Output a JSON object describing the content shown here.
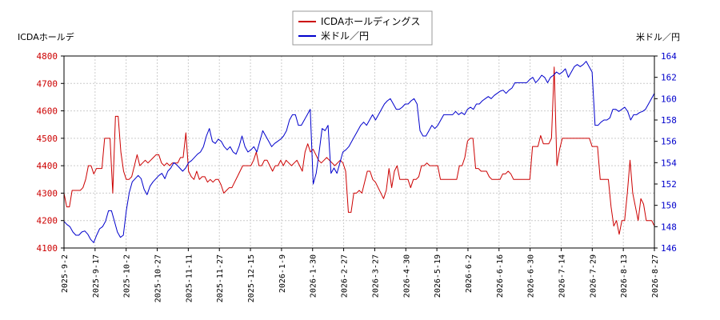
{
  "chart_data": {
    "type": "line",
    "left_axis_label": "ICDAホールデ",
    "right_axis_label": "米ドル／円",
    "legend_position": "top-center",
    "grid": true,
    "colors": {
      "left_series": "#cc0000",
      "right_series": "#0000cc",
      "grid": "#cccccc",
      "frame": "#000000"
    },
    "left_axis": {
      "min": 4100,
      "max": 4800,
      "ticks": [
        "4100",
        "4200",
        "4300",
        "4400",
        "4500",
        "4600",
        "4700",
        "4800"
      ]
    },
    "right_axis": {
      "min": 146,
      "max": 164,
      "ticks": [
        "146",
        "148",
        "150",
        "152",
        "154",
        "156",
        "158",
        "160",
        "162",
        "164"
      ]
    },
    "x_ticks": [
      "2025-9-2",
      "2025-9-17",
      "2025-10-2",
      "2025-10-27",
      "2025-11-11",
      "2025-11-27",
      "2025-12-15",
      "2026-1-9",
      "2026-1-30",
      "2026-2-27",
      "2026-3-27",
      "2026-4-30",
      "2026-5-19",
      "2026-6-2",
      "2026-6-16",
      "2026-6-30",
      "2026-7-14",
      "2026-7-29",
      "2026-8-13",
      "2026-8-27"
    ],
    "series": [
      {
        "name": "ICDAホールディングス",
        "axis": "left",
        "values": [
          4300,
          4250,
          4250,
          4310,
          4310,
          4310,
          4310,
          4320,
          4350,
          4400,
          4400,
          4370,
          4390,
          4390,
          4390,
          4500,
          4500,
          4500,
          4300,
          4580,
          4580,
          4450,
          4380,
          4350,
          4350,
          4360,
          4400,
          4440,
          4400,
          4410,
          4420,
          4410,
          4420,
          4430,
          4440,
          4440,
          4410,
          4400,
          4410,
          4400,
          4410,
          4410,
          4410,
          4430,
          4430,
          4520,
          4380,
          4360,
          4350,
          4380,
          4350,
          4360,
          4360,
          4340,
          4350,
          4340,
          4350,
          4350,
          4330,
          4300,
          4310,
          4320,
          4320,
          4340,
          4360,
          4380,
          4400,
          4400,
          4400,
          4400,
          4420,
          4450,
          4400,
          4400,
          4420,
          4420,
          4400,
          4380,
          4400,
          4400,
          4420,
          4400,
          4420,
          4410,
          4400,
          4410,
          4420,
          4400,
          4380,
          4450,
          4480,
          4450,
          4460,
          4440,
          4420,
          4410,
          4420,
          4430,
          4420,
          4410,
          4400,
          4410,
          4420,
          4410,
          4380,
          4230,
          4230,
          4300,
          4300,
          4310,
          4300,
          4340,
          4380,
          4380,
          4350,
          4340,
          4320,
          4300,
          4280,
          4310,
          4390,
          4320,
          4380,
          4400,
          4350,
          4350,
          4350,
          4350,
          4320,
          4350,
          4350,
          4360,
          4400,
          4400,
          4410,
          4400,
          4400,
          4400,
          4400,
          4350,
          4350,
          4350,
          4350,
          4350,
          4350,
          4350,
          4400,
          4400,
          4430,
          4490,
          4500,
          4500,
          4390,
          4390,
          4380,
          4380,
          4380,
          4360,
          4350,
          4350,
          4350,
          4350,
          4370,
          4370,
          4380,
          4370,
          4350,
          4350,
          4350,
          4350,
          4350,
          4350,
          4350,
          4470,
          4470,
          4470,
          4510,
          4480,
          4480,
          4480,
          4500,
          4760,
          4400,
          4460,
          4500,
          4500,
          4500,
          4500,
          4500,
          4500,
          4500,
          4500,
          4500,
          4500,
          4500,
          4470,
          4470,
          4470,
          4350,
          4350,
          4350,
          4350,
          4250,
          4180,
          4200,
          4150,
          4200,
          4200,
          4300,
          4420,
          4300,
          4250,
          4200,
          4280,
          4260,
          4200,
          4200,
          4200,
          4180
        ]
      },
      {
        "name": "米ドル／円",
        "axis": "right",
        "values": [
          148.5,
          148.2,
          148.0,
          147.5,
          147.2,
          147.2,
          147.5,
          147.6,
          147.3,
          146.8,
          146.5,
          147.2,
          147.8,
          148.0,
          148.5,
          149.5,
          149.5,
          148.5,
          147.5,
          147.0,
          147.2,
          149.5,
          151.2,
          152.2,
          152.5,
          152.8,
          152.5,
          151.5,
          151.0,
          151.8,
          152.2,
          152.5,
          152.8,
          153.0,
          152.5,
          153.2,
          153.5,
          154.0,
          153.8,
          153.5,
          153.2,
          153.5,
          154.0,
          154.2,
          154.5,
          154.8,
          155.0,
          155.5,
          156.5,
          157.2,
          156.0,
          155.8,
          156.2,
          156.0,
          155.5,
          155.2,
          155.5,
          155.0,
          154.8,
          155.5,
          156.5,
          155.5,
          155.0,
          155.2,
          155.5,
          155.0,
          156.0,
          157.0,
          156.5,
          156.0,
          155.5,
          155.8,
          156.0,
          156.2,
          156.5,
          157.0,
          158.0,
          158.5,
          158.5,
          157.5,
          157.5,
          158.0,
          158.5,
          159.0,
          152.0,
          153.0,
          155.0,
          157.2,
          157.0,
          157.5,
          153.0,
          153.5,
          153.0,
          154.0,
          155.0,
          155.2,
          155.5,
          156.0,
          156.5,
          157.0,
          157.5,
          157.8,
          157.5,
          158.0,
          158.5,
          158.0,
          158.5,
          159.0,
          159.5,
          159.8,
          160.0,
          159.5,
          159.0,
          159.0,
          159.2,
          159.5,
          159.5,
          159.8,
          160.0,
          159.5,
          157.0,
          156.5,
          156.5,
          157.0,
          157.5,
          157.2,
          157.5,
          158.0,
          158.5,
          158.5,
          158.5,
          158.5,
          158.8,
          158.5,
          158.7,
          158.5,
          159.0,
          159.2,
          159.0,
          159.5,
          159.5,
          159.8,
          160.0,
          160.2,
          160.0,
          160.3,
          160.5,
          160.7,
          160.8,
          160.5,
          160.8,
          161.0,
          161.5,
          161.5,
          161.5,
          161.5,
          161.5,
          161.8,
          162.0,
          161.5,
          161.8,
          162.2,
          162.0,
          161.5,
          162.0,
          162.2,
          162.5,
          162.3,
          162.5,
          162.8,
          162.0,
          162.5,
          163.0,
          163.2,
          163.0,
          163.2,
          163.5,
          163.0,
          162.5,
          157.5,
          157.5,
          157.8,
          158.0,
          158.0,
          158.2,
          159.0,
          159.0,
          158.8,
          159.0,
          159.2,
          158.8,
          158.0,
          158.5,
          158.5,
          158.7,
          158.8,
          159.0,
          159.5,
          160.0,
          160.5
        ]
      }
    ]
  }
}
